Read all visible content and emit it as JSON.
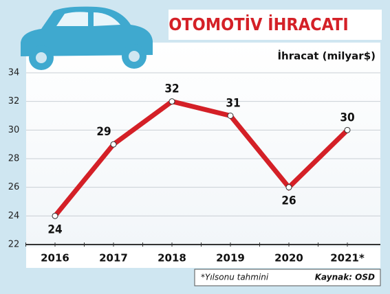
{
  "chart_data": {
    "type": "line",
    "title": "OTOMOTİV İHRACATI",
    "y_label": "İhracat (milyar$)",
    "categories": [
      "2016",
      "2017",
      "2018",
      "2019",
      "2020",
      "2021*"
    ],
    "series": [
      {
        "name": "İhracat",
        "color": "#d42027",
        "values": [
          24,
          29,
          32,
          31,
          26,
          30
        ]
      }
    ],
    "ylim": [
      22,
      34
    ],
    "yticks": [
      22,
      24,
      26,
      28,
      30,
      32,
      34
    ],
    "grid": true,
    "footnote": "*Yılsonu tahmini",
    "source": "Kaynak: OSD"
  }
}
